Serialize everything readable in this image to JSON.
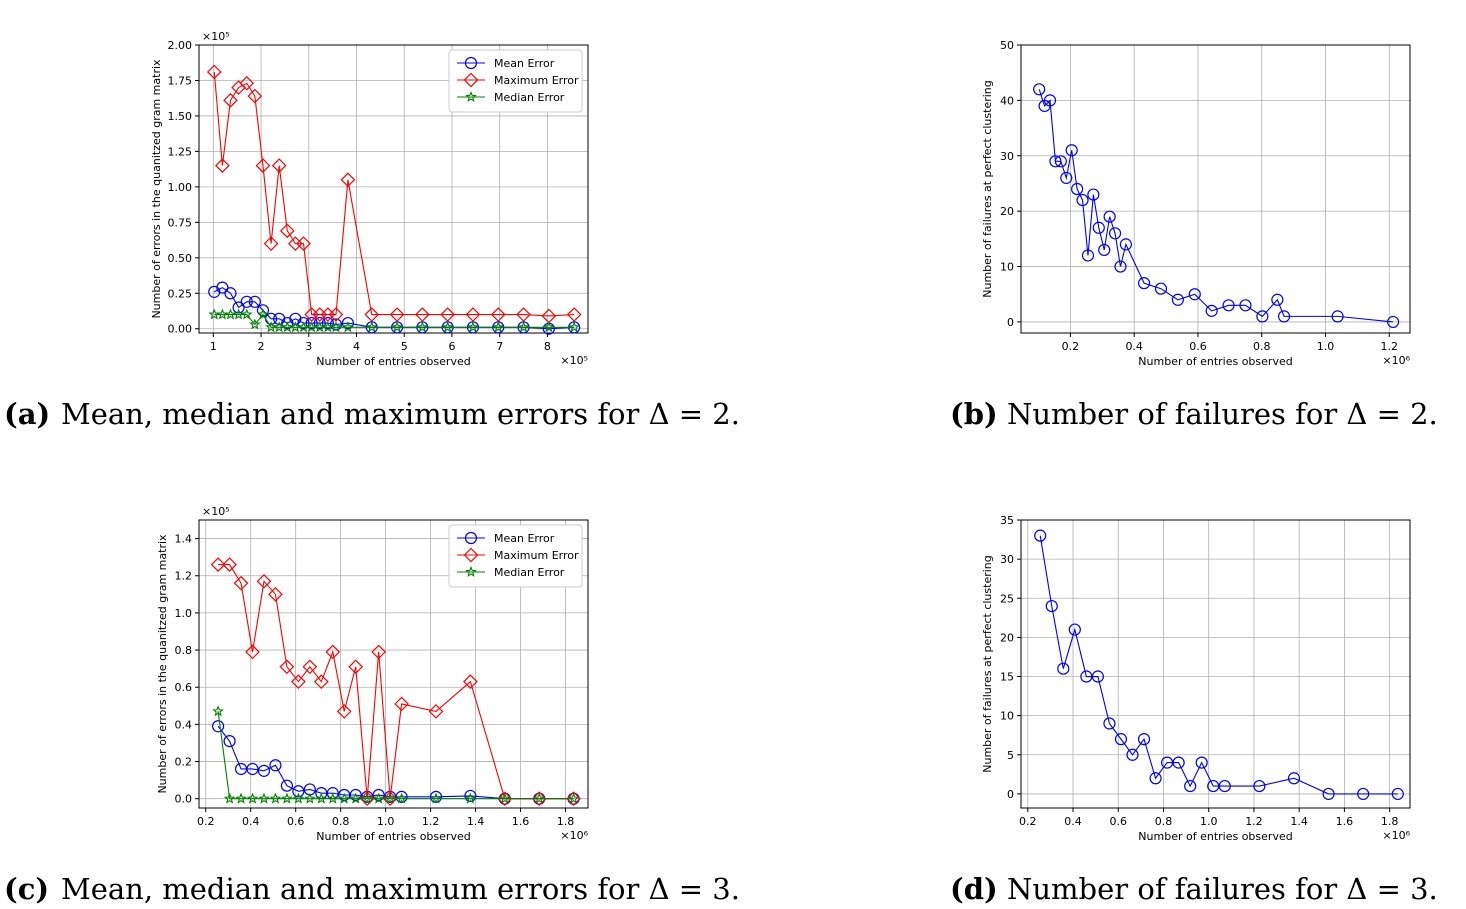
{
  "chart_data": [
    {
      "id": "a",
      "type": "line",
      "caption_tag": "(a)",
      "caption_text": "Mean, median and maximum errors for Δ = 2.",
      "xlabel": "Number of entries observed",
      "ylabel": "Number of errors in the quanitzed gram matrix",
      "x_multiplier": "×10⁵",
      "y_multiplier": "×10⁵",
      "xlim": [
        0.7,
        8.85
      ],
      "ylim": [
        -0.03,
        2.0
      ],
      "xticks": [
        1,
        2,
        3,
        4,
        5,
        6,
        7,
        8
      ],
      "xtick_labels": [
        "1",
        "2",
        "3",
        "4",
        "5",
        "6",
        "7",
        "8"
      ],
      "yticks": [
        0,
        0.25,
        0.5,
        0.75,
        1.0,
        1.25,
        1.5,
        1.75,
        2.0
      ],
      "ytick_labels": [
        "0.00",
        "0.25",
        "0.50",
        "0.75",
        "1.00",
        "1.25",
        "1.50",
        "1.75",
        "2.00"
      ],
      "grid": true,
      "legend_position": "top-right",
      "x": [
        1.02,
        1.19,
        1.36,
        1.53,
        1.7,
        1.87,
        2.04,
        2.21,
        2.38,
        2.55,
        2.72,
        2.89,
        3.06,
        3.23,
        3.4,
        3.57,
        3.82,
        4.32,
        4.85,
        5.38,
        5.91,
        6.44,
        6.97,
        7.5,
        8.03,
        8.56
      ],
      "series": [
        {
          "name": "Mean Error",
          "color": "#0000ff",
          "marker": "circle",
          "values": [
            0.26,
            0.29,
            0.25,
            0.15,
            0.19,
            0.19,
            0.13,
            0.07,
            0.07,
            0.04,
            0.07,
            0.04,
            0.04,
            0.04,
            0.04,
            0.03,
            0.04,
            0.01,
            0.01,
            0.01,
            0.01,
            0.01,
            0.01,
            0.01,
            0.0,
            0.01
          ]
        },
        {
          "name": "Maximum Error",
          "color": "#ff0000",
          "marker": "diamond",
          "values": [
            1.81,
            1.15,
            1.61,
            1.7,
            1.73,
            1.64,
            1.15,
            0.6,
            1.15,
            0.69,
            0.6,
            0.6,
            0.1,
            0.1,
            0.1,
            0.1,
            1.05,
            0.1,
            0.1,
            0.1,
            0.1,
            0.1,
            0.1,
            0.1,
            0.09,
            0.1
          ]
        },
        {
          "name": "Median Error",
          "color": "#008000",
          "marker": "star",
          "values": [
            0.1,
            0.1,
            0.1,
            0.1,
            0.1,
            0.03,
            0.1,
            0.01,
            0.01,
            0.01,
            0.01,
            0.01,
            0.01,
            0.01,
            0.01,
            0.01,
            0.01,
            0.01,
            0.01,
            0.01,
            0.01,
            0.01,
            0.01,
            0.01,
            0.01,
            0.01
          ]
        }
      ]
    },
    {
      "id": "b",
      "type": "line",
      "caption_tag": "(b)",
      "caption_text": "Number of failures for Δ = 2.",
      "xlabel": "Number of entries observed",
      "ylabel": "Number of failures at perfect clustering",
      "x_multiplier": "×10⁶",
      "y_multiplier": "",
      "xlim": [
        0.045,
        1.265
      ],
      "ylim": [
        -2,
        50
      ],
      "xticks": [
        0.2,
        0.4,
        0.6,
        0.8,
        1.0,
        1.2
      ],
      "xtick_labels": [
        "0.2",
        "0.4",
        "0.6",
        "0.8",
        "1.0",
        "1.2"
      ],
      "yticks": [
        0,
        10,
        20,
        30,
        40,
        50
      ],
      "ytick_labels": [
        "0",
        "10",
        "20",
        "30",
        "40",
        "50"
      ],
      "grid": true,
      "x": [
        0.102,
        0.119,
        0.136,
        0.153,
        0.17,
        0.187,
        0.204,
        0.221,
        0.238,
        0.255,
        0.272,
        0.289,
        0.306,
        0.323,
        0.34,
        0.357,
        0.374,
        0.431,
        0.484,
        0.537,
        0.59,
        0.643,
        0.696,
        0.749,
        0.802,
        0.849,
        0.87,
        1.038,
        1.212
      ],
      "series": [
        {
          "name": "failures",
          "color": "#0000ff",
          "marker": "circle",
          "values": [
            42,
            39,
            40,
            29,
            29,
            26,
            31,
            24,
            22,
            12,
            23,
            17,
            13,
            19,
            16,
            10,
            14,
            7,
            6,
            4,
            5,
            2,
            3,
            3,
            1,
            4,
            1,
            1,
            0
          ]
        }
      ]
    },
    {
      "id": "c",
      "type": "line",
      "caption_tag": "(c)",
      "caption_text": "Mean, median and maximum errors for Δ = 3.",
      "xlabel": "Number of entries observed",
      "ylabel": "Number of errors in the quanitzed gram matrix",
      "x_multiplier": "×10⁶",
      "y_multiplier": "×10⁵",
      "xlim": [
        0.17,
        1.9
      ],
      "ylim": [
        -0.05,
        1.5
      ],
      "xticks": [
        0.2,
        0.4,
        0.6,
        0.8,
        1.0,
        1.2,
        1.4,
        1.6,
        1.8
      ],
      "xtick_labels": [
        "0.2",
        "0.4",
        "0.6",
        "0.8",
        "1.0",
        "1.2",
        "1.4",
        "1.6",
        "1.8"
      ],
      "yticks": [
        0,
        0.2,
        0.4,
        0.6,
        0.8,
        1.0,
        1.2,
        1.4
      ],
      "ytick_labels": [
        "0.0",
        "0.2",
        "0.4",
        "0.6",
        "0.8",
        "1.0",
        "1.2",
        "1.4"
      ],
      "grid": true,
      "legend_position": "top-right",
      "x": [
        0.255,
        0.306,
        0.357,
        0.408,
        0.459,
        0.51,
        0.561,
        0.612,
        0.663,
        0.714,
        0.765,
        0.816,
        0.867,
        0.918,
        0.969,
        1.02,
        1.071,
        1.224,
        1.377,
        1.53,
        1.683,
        1.836
      ],
      "series": [
        {
          "name": "Mean Error",
          "color": "#0000ff",
          "marker": "circle",
          "values": [
            0.39,
            0.31,
            0.16,
            0.16,
            0.15,
            0.18,
            0.07,
            0.04,
            0.05,
            0.03,
            0.03,
            0.02,
            0.02,
            0.01,
            0.02,
            0.01,
            0.01,
            0.01,
            0.015,
            0.0,
            0.0,
            0.0
          ]
        },
        {
          "name": "Maximum Error",
          "color": "#ff0000",
          "marker": "diamond",
          "values": [
            1.26,
            1.26,
            1.16,
            0.79,
            1.17,
            1.1,
            0.71,
            0.63,
            0.71,
            0.63,
            0.79,
            0.47,
            0.71,
            0.0,
            0.79,
            0.0,
            0.51,
            0.47,
            0.63,
            0.0,
            0.0,
            0.0
          ]
        },
        {
          "name": "Median Error",
          "color": "#008000",
          "marker": "star",
          "values": [
            0.47,
            0.0,
            0.0,
            0.0,
            0.0,
            0.0,
            0.0,
            0.0,
            0.0,
            0.0,
            0.0,
            0.0,
            0.0,
            0.0,
            0.0,
            0.0,
            0.0,
            0.0,
            0.0,
            0.0,
            0.0,
            0.0
          ]
        }
      ]
    },
    {
      "id": "d",
      "type": "line",
      "caption_tag": "(d)",
      "caption_text": "Number of failures for Δ = 3.",
      "xlabel": "Number of entries observed",
      "ylabel": "Number of failures at perfect clustering",
      "x_multiplier": "×10⁶",
      "y_multiplier": "",
      "xlim": [
        0.17,
        1.89
      ],
      "ylim": [
        -1.8,
        35
      ],
      "xticks": [
        0.2,
        0.4,
        0.6,
        0.8,
        1.0,
        1.2,
        1.4,
        1.6,
        1.8
      ],
      "xtick_labels": [
        "0.2",
        "0.4",
        "0.6",
        "0.8",
        "1.0",
        "1.2",
        "1.4",
        "1.6",
        "1.8"
      ],
      "yticks": [
        0,
        5,
        10,
        15,
        20,
        25,
        30,
        35
      ],
      "ytick_labels": [
        "0",
        "5",
        "10",
        "15",
        "20",
        "25",
        "30",
        "35"
      ],
      "grid": true,
      "x": [
        0.255,
        0.306,
        0.357,
        0.408,
        0.459,
        0.51,
        0.561,
        0.612,
        0.663,
        0.714,
        0.765,
        0.816,
        0.867,
        0.918,
        0.969,
        1.02,
        1.071,
        1.224,
        1.377,
        1.53,
        1.683,
        1.836
      ],
      "series": [
        {
          "name": "failures",
          "color": "#0000ff",
          "marker": "circle",
          "values": [
            33,
            24,
            16,
            21,
            15,
            15,
            9,
            7,
            5,
            7,
            2,
            4,
            4,
            1,
            4,
            1,
            1,
            1,
            2,
            0,
            0,
            0
          ]
        }
      ]
    }
  ]
}
